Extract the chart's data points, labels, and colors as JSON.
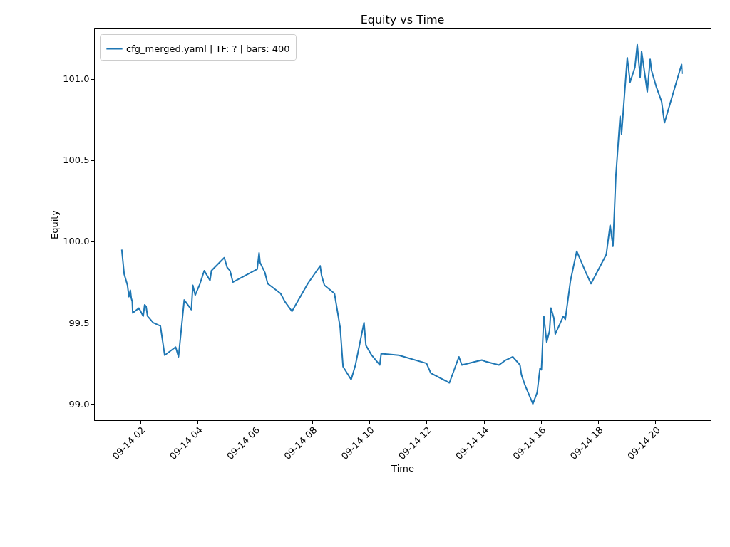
{
  "chart_data": {
    "type": "line",
    "title": "Equity vs Time",
    "xlabel": "Time",
    "ylabel": "Equity",
    "xlim": [
      "--09-14T00:23",
      "--09-14T21:56"
    ],
    "ylim": [
      98.9,
      101.31
    ],
    "xticks": [
      {
        "value": "--09-14T02:00",
        "label": "09-14 02"
      },
      {
        "value": "--09-14T04:00",
        "label": "09-14 04"
      },
      {
        "value": "--09-14T06:00",
        "label": "09-14 06"
      },
      {
        "value": "--09-14T08:00",
        "label": "09-14 08"
      },
      {
        "value": "--09-14T10:00",
        "label": "09-14 10"
      },
      {
        "value": "--09-14T12:00",
        "label": "09-14 12"
      },
      {
        "value": "--09-14T14:00",
        "label": "09-14 14"
      },
      {
        "value": "--09-14T16:00",
        "label": "09-14 16"
      },
      {
        "value": "--09-14T18:00",
        "label": "09-14 18"
      },
      {
        "value": "--09-14T20:00",
        "label": "09-14 20"
      }
    ],
    "yticks": [
      {
        "value": 99,
        "label": "99.0"
      },
      {
        "value": 99.5,
        "label": "99.5"
      },
      {
        "value": 100,
        "label": "100.0"
      },
      {
        "value": 100.5,
        "label": "100.5"
      },
      {
        "value": 101,
        "label": "101.0"
      }
    ],
    "legend": "top left",
    "grid": false,
    "series": [
      {
        "name": "cfg_merged.yaml | TF: ? | bars: 400",
        "color": "#1f77b4",
        "x": [
          "--09-14T01:21",
          "--09-14T01:26",
          "--09-14T01:33",
          "--09-14T01:36",
          "--09-14T01:39",
          "--09-14T01:41",
          "--09-14T01:43",
          "--09-14T01:44",
          "--09-14T01:57",
          "--09-14T02:06",
          "--09-14T02:09",
          "--09-14T02:12",
          "--09-14T02:15",
          "--09-14T02:27",
          "--09-14T02:42",
          "--09-14T02:51",
          "--09-14T03:14",
          "--09-14T03:20",
          "--09-14T03:32",
          "--09-14T03:47",
          "--09-14T03:50",
          "--09-14T03:55",
          "--09-14T04:05",
          "--09-14T04:14",
          "--09-14T04:26",
          "--09-14T04:29",
          "--09-14T04:56",
          "--09-14T05:02",
          "--09-14T05:08",
          "--09-14T05:14",
          "--09-14T06:05",
          "--09-14T06:09",
          "--09-14T06:11",
          "--09-14T06:21",
          "--09-14T06:27",
          "--09-14T06:54",
          "--09-14T07:03",
          "--09-14T07:18",
          "--09-14T07:51",
          "--09-14T08:17",
          "--09-14T08:20",
          "--09-14T08:26",
          "--09-14T08:47",
          "--09-14T08:59",
          "--09-14T09:02",
          "--09-14T09:05",
          "--09-14T09:22",
          "--09-14T09:31",
          "--09-14T09:49",
          "--09-14T09:53",
          "--09-14T10:05",
          "--09-14T10:22",
          "--09-14T10:25",
          "--09-14T11:02",
          "--09-14T12:00",
          "--09-14T12:09",
          "--09-14T12:48",
          "--09-14T13:08",
          "--09-14T13:14",
          "--09-14T13:56",
          "--09-14T14:05",
          "--09-14T14:32",
          "--09-14T14:46",
          "--09-14T15:01",
          "--09-14T15:16",
          "--09-14T15:19",
          "--09-14T15:26",
          "--09-14T15:43",
          "--09-14T15:52",
          "--09-14T15:58",
          "--09-14T16:01",
          "--09-14T16:06",
          "--09-14T16:12",
          "--09-14T16:18",
          "--09-14T16:21",
          "--09-14T16:27",
          "--09-14T16:30",
          "--09-14T16:47",
          "--09-14T16:51",
          "--09-14T17:02",
          "--09-14T17:15",
          "--09-14T17:34",
          "--09-14T17:45",
          "--09-14T18:17",
          "--09-14T18:25",
          "--09-14T18:31",
          "--09-14T18:37",
          "--09-14T18:46",
          "--09-14T18:49",
          "--09-14T19:01",
          "--09-14T19:07",
          "--09-14T19:17",
          "--09-14T19:22",
          "--09-14T19:28",
          "--09-14T19:31",
          "--09-14T19:43",
          "--09-14T19:49",
          "--09-14T19:52",
          "--09-14T20:02",
          "--09-14T20:13",
          "--09-14T20:19",
          "--09-14T20:55",
          "--09-14T20:56"
        ],
        "values": [
          99.95,
          99.8,
          99.73,
          99.66,
          99.7,
          99.65,
          99.63,
          99.56,
          99.59,
          99.54,
          99.61,
          99.6,
          99.54,
          99.5,
          99.48,
          99.3,
          99.35,
          99.29,
          99.64,
          99.58,
          99.73,
          99.67,
          99.74,
          99.82,
          99.76,
          99.82,
          99.9,
          99.84,
          99.82,
          99.75,
          99.83,
          99.93,
          99.87,
          99.81,
          99.74,
          99.68,
          99.63,
          99.57,
          99.74,
          99.85,
          99.79,
          99.73,
          99.68,
          99.47,
          99.35,
          99.23,
          99.15,
          99.24,
          99.5,
          99.36,
          99.3,
          99.24,
          99.31,
          99.3,
          99.25,
          99.19,
          99.13,
          99.29,
          99.24,
          99.27,
          99.26,
          99.24,
          99.27,
          99.29,
          99.24,
          99.18,
          99.12,
          99.0,
          99.07,
          99.22,
          99.21,
          99.54,
          99.38,
          99.45,
          99.59,
          99.53,
          99.43,
          99.54,
          99.52,
          99.76,
          99.94,
          99.81,
          99.74,
          99.92,
          100.1,
          99.97,
          100.4,
          100.77,
          100.66,
          101.13,
          100.98,
          101.07,
          101.21,
          101.01,
          101.17,
          100.92,
          101.12,
          101.05,
          100.95,
          100.86,
          100.73,
          101.09,
          101.03
        ]
      }
    ]
  }
}
